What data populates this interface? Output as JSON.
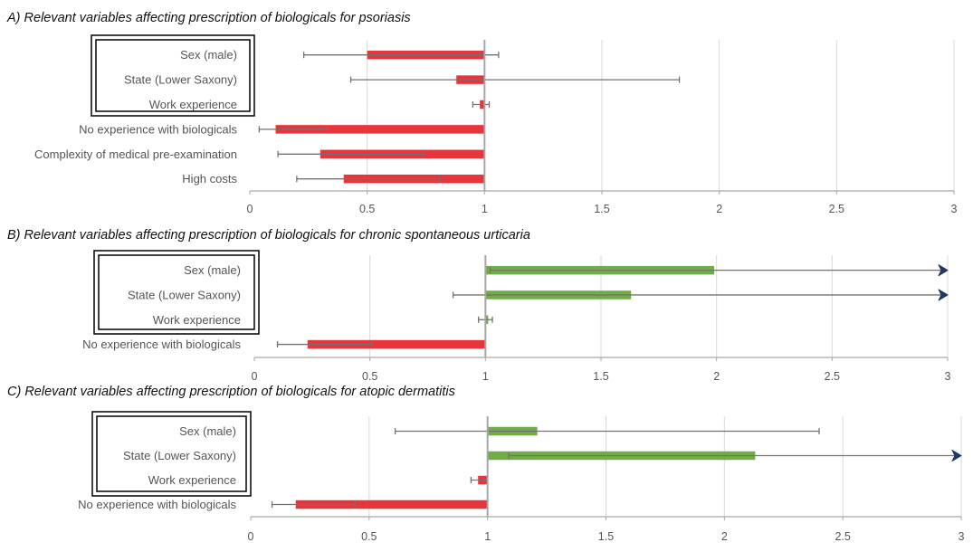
{
  "chart_data": [
    {
      "type": "bar",
      "title": "A)  Relevant variables affecting prescription of biologicals for psoriasis",
      "xlabel": "",
      "ylabel": "",
      "xlim": [
        0,
        3
      ],
      "baseline": 1,
      "x_ticks": [
        "0",
        "0.5",
        "1",
        "1.5",
        "2",
        "2.5",
        "3"
      ],
      "grid": true,
      "boxed_categories": [
        "Sex (male)",
        "State (Lower Saxony)",
        "Work experience"
      ],
      "categories": [
        "Sex (male)",
        "State (Lower Saxony)",
        "Work experience",
        "No experience with biologicals",
        "Complexity of medical pre-examination",
        "High costs"
      ],
      "values": [
        0.5,
        0.88,
        0.98,
        0.11,
        0.3,
        0.4
      ],
      "ci_low": [
        0.23,
        0.43,
        0.95,
        0.04,
        0.12,
        0.2
      ],
      "ci_high": [
        1.06,
        1.83,
        1.02,
        0.33,
        0.74,
        0.81
      ],
      "ci_arrow": [
        false,
        false,
        false,
        false,
        false,
        false
      ]
    },
    {
      "type": "bar",
      "title": "B)  Relevant variables affecting prescription of biologicals for chronic spontaneous urticaria",
      "xlabel": "",
      "ylabel": "",
      "xlim": [
        0,
        3
      ],
      "baseline": 1,
      "x_ticks": [
        "0",
        "0.5",
        "1",
        "1.5",
        "2",
        "2.5",
        "3"
      ],
      "grid": true,
      "boxed_categories": [
        "Sex (male)",
        "State (Lower Saxony)",
        "Work experience"
      ],
      "categories": [
        "Sex (male)",
        "State (Lower Saxony)",
        "Work experience",
        "No experience with biologicals"
      ],
      "values": [
        1.99,
        1.63,
        1.0,
        0.23
      ],
      "ci_low": [
        1.02,
        0.86,
        0.97,
        0.1
      ],
      "ci_high": [
        3.0,
        3.0,
        1.03,
        0.51
      ],
      "ci_arrow": [
        true,
        true,
        false,
        false
      ]
    },
    {
      "type": "bar",
      "title": "C)  Relevant variables affecting prescription of biologicals for atopic dermatitis",
      "xlabel": "",
      "ylabel": "",
      "xlim": [
        0,
        3
      ],
      "baseline": 1,
      "x_ticks": [
        "0",
        "0.5",
        "1",
        "1.5",
        "2",
        "2.5",
        "3"
      ],
      "grid": true,
      "boxed_categories": [
        "Sex (male)",
        "State (Lower Saxony)",
        "Work experience"
      ],
      "categories": [
        "Sex (male)",
        "State (Lower Saxony)",
        "Work experience",
        "No experience with biologicals"
      ],
      "values": [
        1.21,
        2.13,
        0.96,
        0.19
      ],
      "ci_low": [
        0.61,
        1.09,
        0.93,
        0.09
      ],
      "ci_high": [
        2.4,
        3.0,
        1.0,
        0.44
      ],
      "ci_arrow": [
        false,
        true,
        false,
        false
      ]
    }
  ],
  "colors": {
    "decrease_bar": "#e8353b",
    "increase_bar": "#70ad47",
    "whisker": "#767171",
    "arrow": "#1f3864",
    "grid": "#d9d9d9",
    "axis": "#a6a6a6",
    "baseline": "#a6a6a6",
    "label_text": "#595959",
    "title_text": "#000000"
  }
}
